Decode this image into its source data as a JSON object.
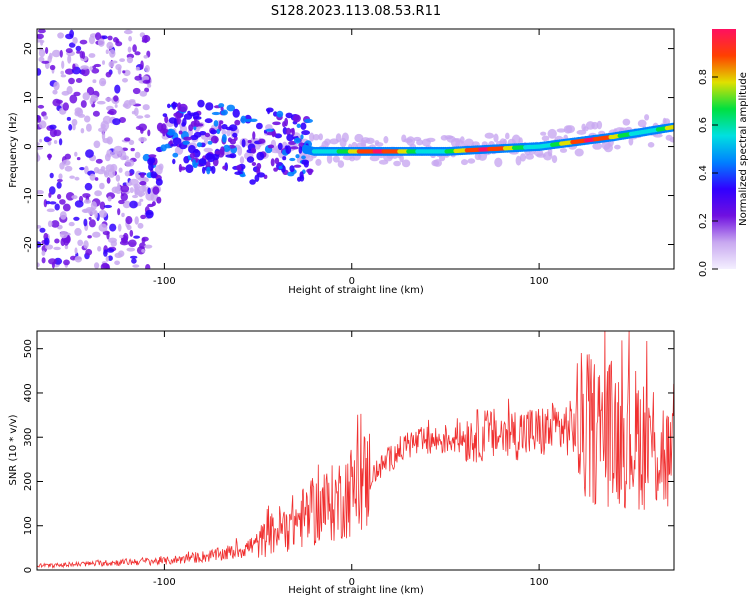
{
  "figure": {
    "title": "S128.2023.113.08.53.R11"
  },
  "colors": {
    "snr_line": "#f03030",
    "frame": "#000000",
    "background": "#ffffff"
  },
  "colormap_stops": [
    "#f4f0ff",
    "#c8a8f0",
    "#7010e0",
    "#3000ff",
    "#0080ff",
    "#00e0e0",
    "#00e040",
    "#e0e000",
    "#ff4000",
    "#ff1060"
  ],
  "chart_data": [
    {
      "id": "spectrogram",
      "type": "heatmap",
      "xlabel": "Height of straight line (km)",
      "ylabel": "Frequency (Hz)",
      "xlim": [
        -168,
        172
      ],
      "ylim": [
        -25,
        24
      ],
      "xticks": [
        -100,
        0,
        100
      ],
      "yticks": [
        20,
        10,
        0,
        -10,
        -20
      ],
      "colorbar": {
        "label": "Normalized spectral amplitude",
        "range": [
          0,
          1
        ],
        "ticks": [
          0.0,
          0.2,
          0.4,
          0.6,
          0.8
        ]
      },
      "ridge": [
        {
          "x": -130,
          "y": -3
        },
        {
          "x": -122,
          "y": -2
        },
        {
          "x": -115,
          "y": -8
        },
        {
          "x": -105,
          "y": -8
        },
        {
          "x": -100,
          "y": 2
        },
        {
          "x": -85,
          "y": 2
        },
        {
          "x": -70,
          "y": 2
        },
        {
          "x": -55,
          "y": -1
        },
        {
          "x": -40,
          "y": 2
        },
        {
          "x": -30,
          "y": 0
        },
        {
          "x": -20,
          "y": -1
        },
        {
          "x": 0,
          "y": -1
        },
        {
          "x": 50,
          "y": -1
        },
        {
          "x": 100,
          "y": 0
        },
        {
          "x": 140,
          "y": 2
        },
        {
          "x": 172,
          "y": 4
        }
      ]
    },
    {
      "id": "snr",
      "type": "line",
      "xlabel": "Height of straight line (km)",
      "ylabel": "SNR (10 * v/v)",
      "xlim": [
        -168,
        172
      ],
      "ylim": [
        0,
        540
      ],
      "xticks": [
        -100,
        0,
        100
      ],
      "yticks": [
        0,
        100,
        200,
        300,
        400,
        500
      ],
      "series": [
        {
          "x": [
            -168,
            -160,
            -150,
            -140,
            -130,
            -120,
            -110,
            -100,
            -90,
            -80,
            -70,
            -60,
            -50,
            -40,
            -30,
            -20,
            -10,
            0,
            10,
            20,
            30,
            40,
            50,
            60,
            70,
            80,
            90,
            100,
            110,
            120,
            130,
            140,
            150,
            160,
            165,
            170
          ],
          "y": [
            10,
            10,
            12,
            14,
            16,
            18,
            20,
            20,
            25,
            30,
            35,
            45,
            60,
            90,
            110,
            130,
            150,
            180,
            210,
            250,
            285,
            290,
            295,
            300,
            305,
            305,
            310,
            310,
            320,
            320,
            315,
            310,
            300,
            290,
            270,
            240
          ]
        }
      ]
    }
  ]
}
